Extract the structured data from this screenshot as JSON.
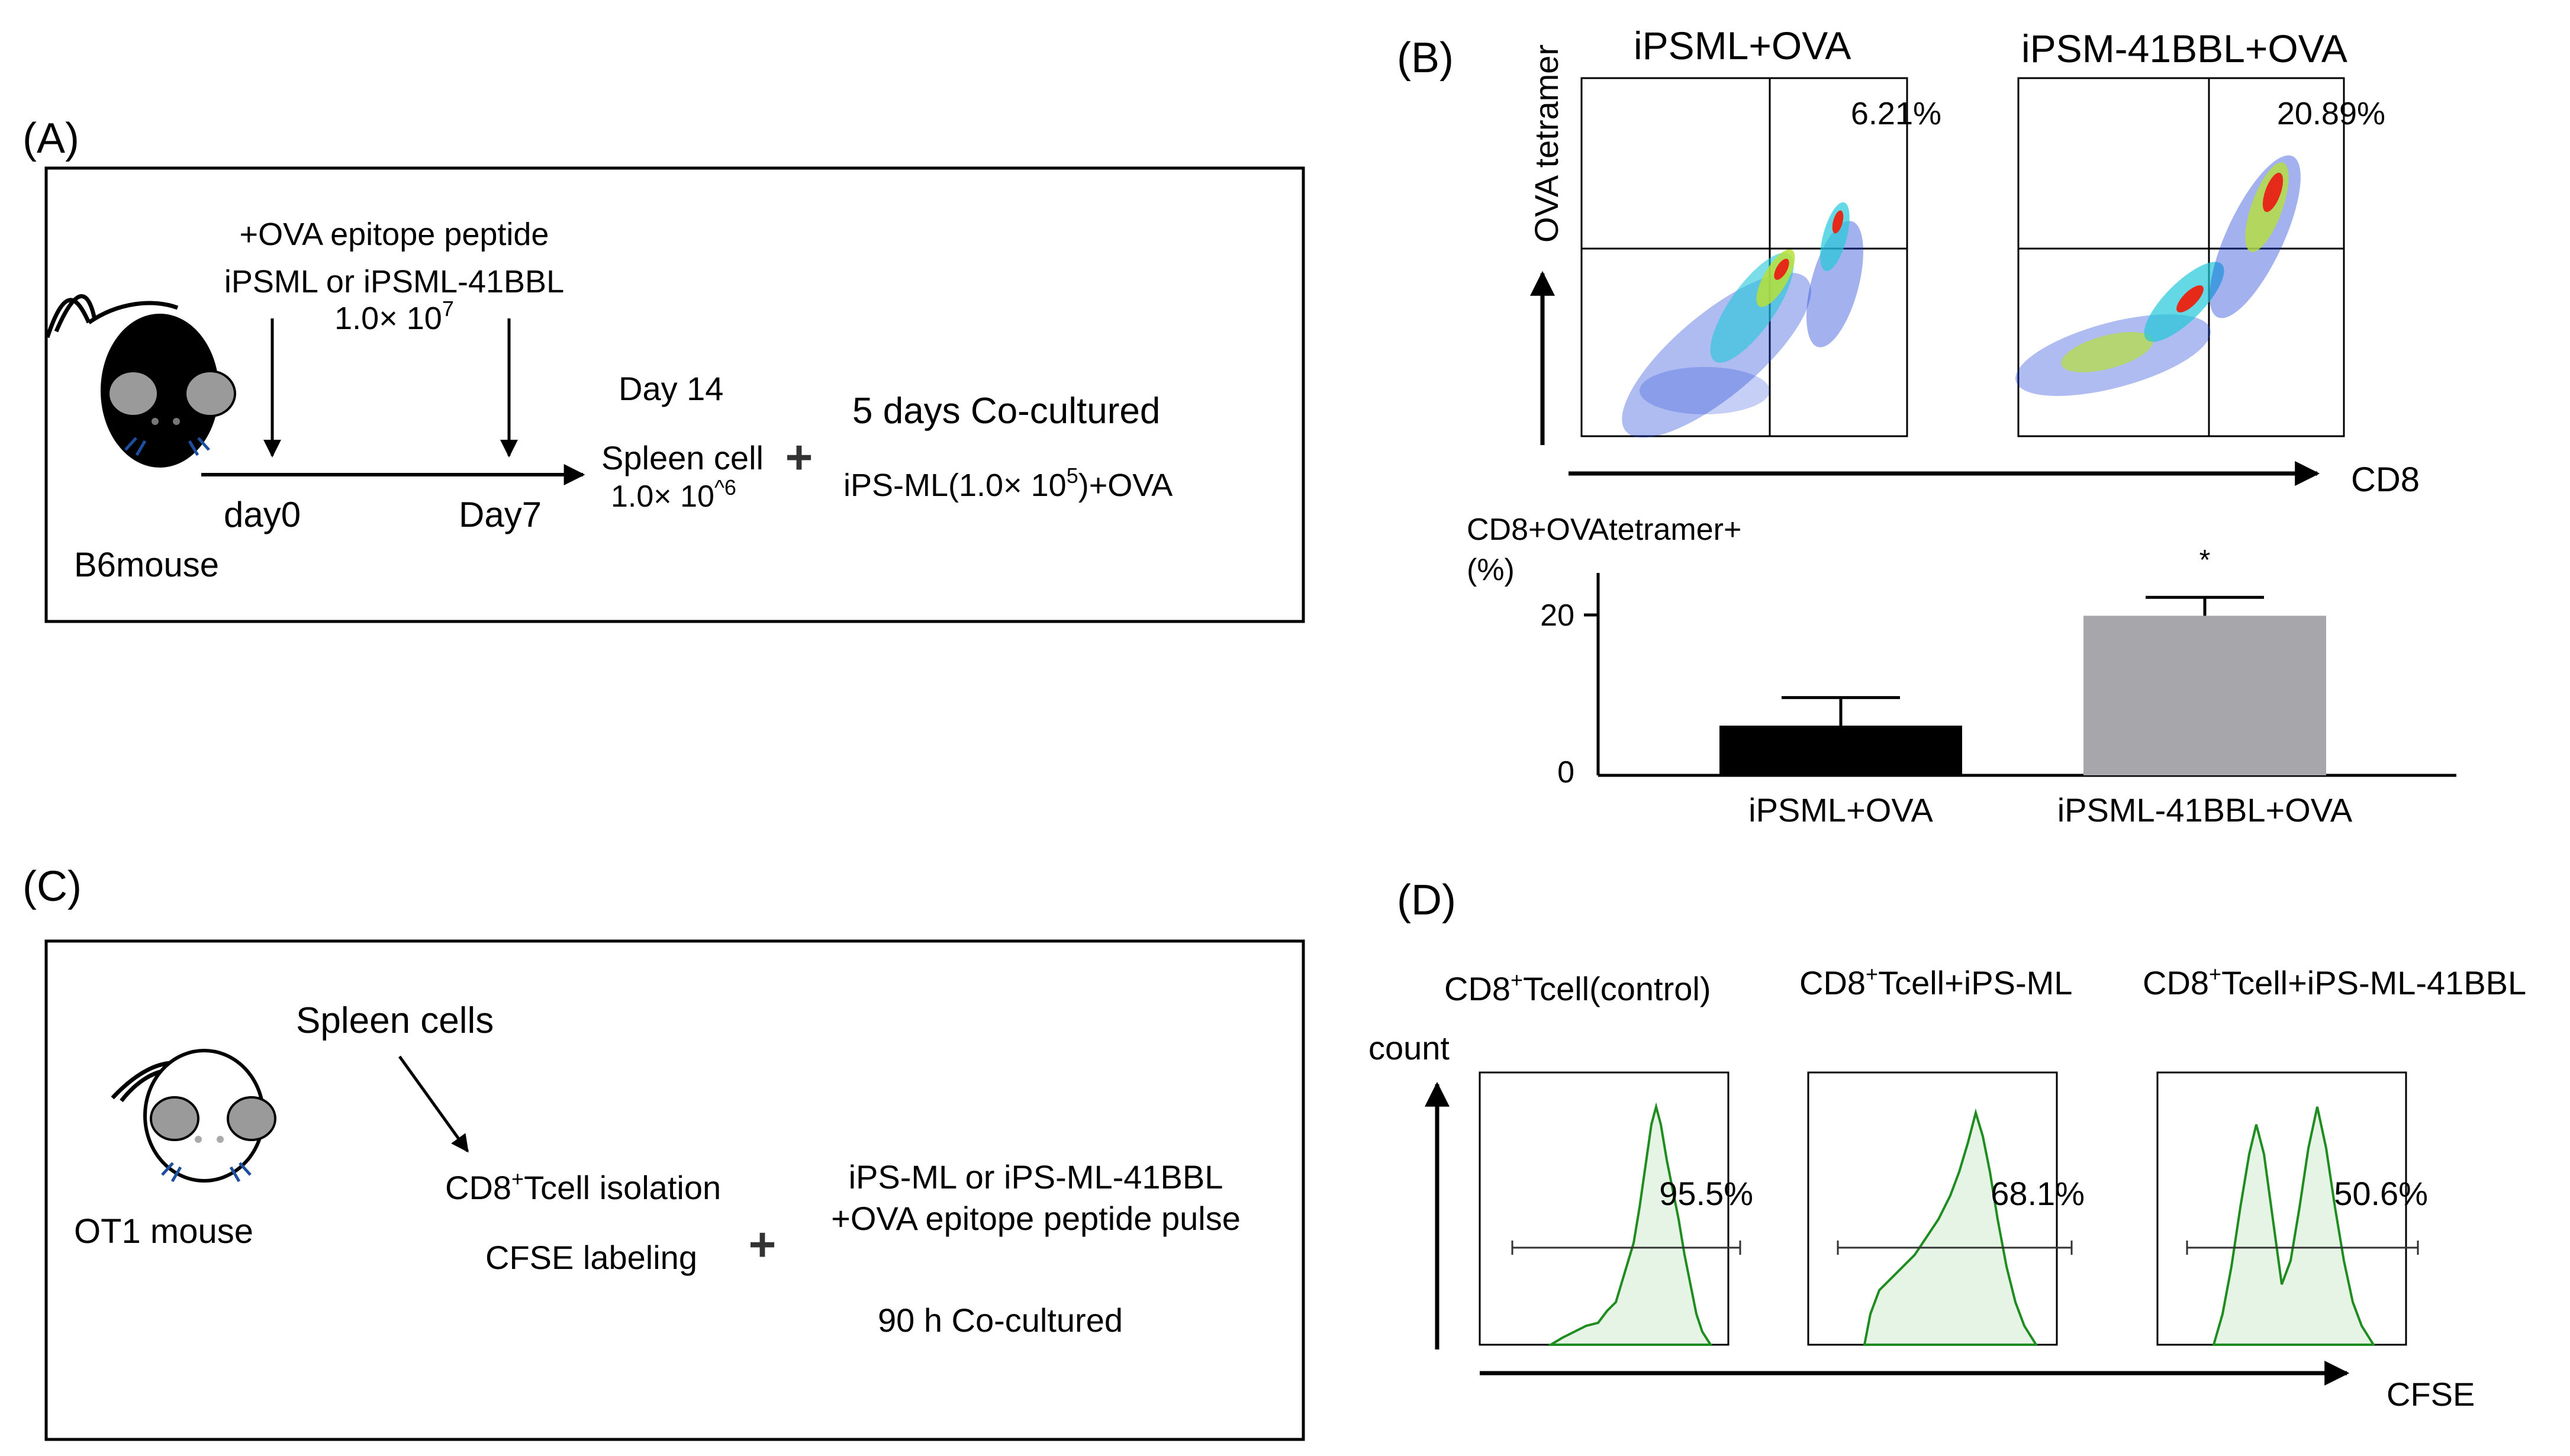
{
  "panel_a": {
    "label": "(A)",
    "peptide_line": "+OVA epitope peptide",
    "cells_line": "iPSML or iPSML-41BBL",
    "dose_base": "1.0× 10",
    "dose_exp": "7",
    "mouse_label": "B6mouse",
    "day0": "day0",
    "day7": "Day7",
    "day14": "Day 14",
    "spleen": "Spleen cell",
    "spleen_dose": "1.0× 10",
    "spleen_exp": "^6",
    "plus": "+",
    "coculture": "5 days Co-cultured",
    "stim_pre": "iPS-ML(1.0× 10",
    "stim_exp": "5",
    "stim_post": ")+OVA"
  },
  "panel_b": {
    "label": "(B)",
    "plot1_title": "iPSML+OVA",
    "plot2_title": "iPSM-41BBL+OVA",
    "plot1_pct": "6.21%",
    "plot2_pct": "20.89%",
    "y_axis_label": "OVA tetramer",
    "x_axis_label": "CD8",
    "bar_ylabel_1": "CD8+OVAtetramer+",
    "bar_ylabel_2": "(%)",
    "tick_20": "20",
    "tick_0": "0",
    "significance": "*"
  },
  "panel_c": {
    "label": "(C)",
    "spleen_cells": "Spleen cells",
    "isolation_pre": "CD8",
    "isolation_sup": "+",
    "isolation_post": "Tcell isolation",
    "cfse": "CFSE labeling",
    "plus": "+",
    "stim_line1": "iPS-ML or iPS-ML-41BBL",
    "stim_line2": "+OVA epitope peptide pulse",
    "coculture": "90 h Co-cultured",
    "mouse_label": "OT1 mouse"
  },
  "panel_d": {
    "label": "(D)",
    "hist1_pre": "CD8",
    "hist1_sup": "+",
    "hist1_post": "Tcell(control)",
    "hist2_pre": "CD8",
    "hist2_sup": "+",
    "hist2_post": "Tcell+iPS-ML",
    "hist3_pre": "CD8",
    "hist3_sup": "+",
    "hist3_post": "Tcell+iPS-ML-41BBL",
    "hist1_pct": "95.5%",
    "hist2_pct": "68.1%",
    "hist3_pct": "50.6%",
    "y_axis_label": "count",
    "x_axis_label": "CFSE"
  },
  "chart_data": {
    "type": "bar",
    "categories": [
      "iPSML+OVA",
      "iPSML-41BBL+OVA"
    ],
    "values": [
      6.2,
      19.9
    ],
    "errors": [
      3.5,
      2.3
    ],
    "colors": [
      "#000000",
      "#a7a7ab"
    ],
    "ylabel": "CD8+OVAtetramer+ (%)",
    "yticks": [
      0,
      20
    ],
    "ylim": [
      0,
      25
    ]
  },
  "colors": {
    "histogram_line": "#1e8c1e",
    "histogram_fill": "#e6f4e6",
    "mouse_black": "#000000",
    "mouse_ear": "#9a9a9a",
    "whiskers": "#1c4fa0"
  }
}
